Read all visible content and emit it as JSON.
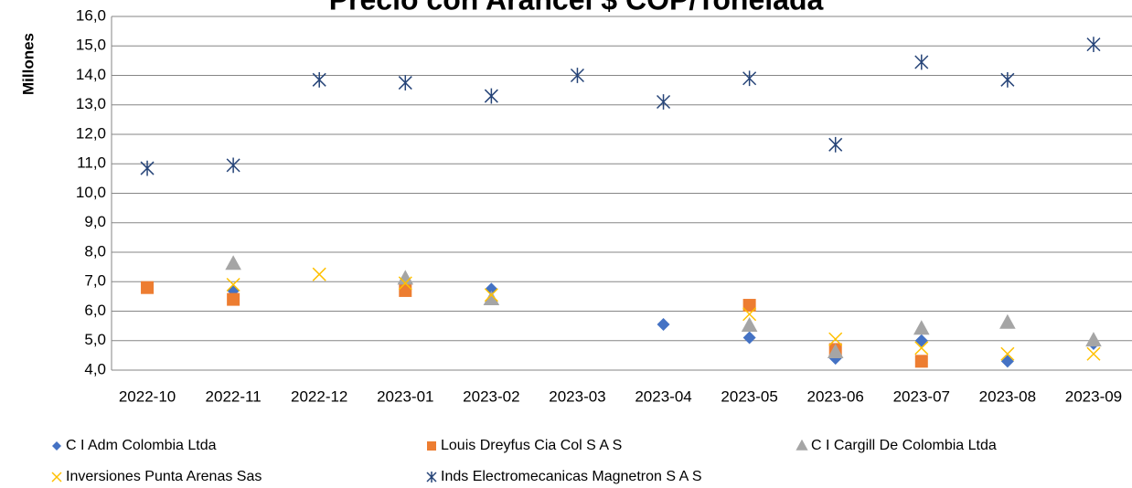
{
  "chart_data": {
    "type": "scatter",
    "title": "Precio con Arancel $ COP/Tonelada",
    "y_label": "Millones",
    "categories": [
      "2022-10",
      "2022-11",
      "2022-12",
      "2023-01",
      "2023-02",
      "2023-03",
      "2023-04",
      "2023-05",
      "2023-06",
      "2023-07",
      "2023-08",
      "2023-09"
    ],
    "series": [
      {
        "name": "C I Adm Colombia Ltda",
        "color": "#4472c4",
        "marker": "diamond",
        "values": [
          null,
          6.7,
          null,
          6.9,
          6.75,
          null,
          5.55,
          5.1,
          4.4,
          5.0,
          4.3,
          4.9
        ]
      },
      {
        "name": "Louis Dreyfus Cia Col S A S",
        "color": "#ed7d31",
        "marker": "square",
        "values": [
          6.8,
          6.4,
          null,
          6.7,
          null,
          null,
          null,
          6.2,
          4.7,
          4.3,
          null,
          null
        ]
      },
      {
        "name": "C I Cargill De Colombia Ltda",
        "color": "#a5a5a5",
        "marker": "triangle",
        "values": [
          null,
          7.6,
          null,
          7.1,
          6.4,
          null,
          null,
          5.5,
          4.6,
          5.4,
          5.6,
          5.0
        ]
      },
      {
        "name": "Inversiones Punta Arenas Sas",
        "color": "#ffc000",
        "marker": "x",
        "values": [
          null,
          6.9,
          7.25,
          6.95,
          6.55,
          null,
          null,
          5.9,
          5.05,
          4.75,
          4.55,
          4.55
        ]
      },
      {
        "name": "Inds Electromecanicas Magnetron S A S",
        "color": "#264478",
        "marker": "star",
        "values": [
          10.85,
          10.95,
          13.85,
          13.75,
          13.3,
          14.0,
          13.1,
          13.9,
          11.65,
          14.45,
          13.85,
          15.05
        ]
      }
    ],
    "ylim": [
      4,
      16
    ],
    "yticks": [
      {
        "value": 4,
        "label": "4,0"
      },
      {
        "value": 5,
        "label": "5,0"
      },
      {
        "value": 6,
        "label": "6,0"
      },
      {
        "value": 7,
        "label": "7,0"
      },
      {
        "value": 8,
        "label": "8,0"
      },
      {
        "value": 9,
        "label": "9,0"
      },
      {
        "value": 10,
        "label": "10,0"
      },
      {
        "value": 11,
        "label": "11,0"
      },
      {
        "value": 12,
        "label": "12,0"
      },
      {
        "value": 13,
        "label": "13,0"
      },
      {
        "value": 14,
        "label": "14,0"
      },
      {
        "value": 15,
        "label": "15,0"
      },
      {
        "value": 16,
        "label": "16,0"
      }
    ],
    "grid": true,
    "legend": "bottom"
  }
}
